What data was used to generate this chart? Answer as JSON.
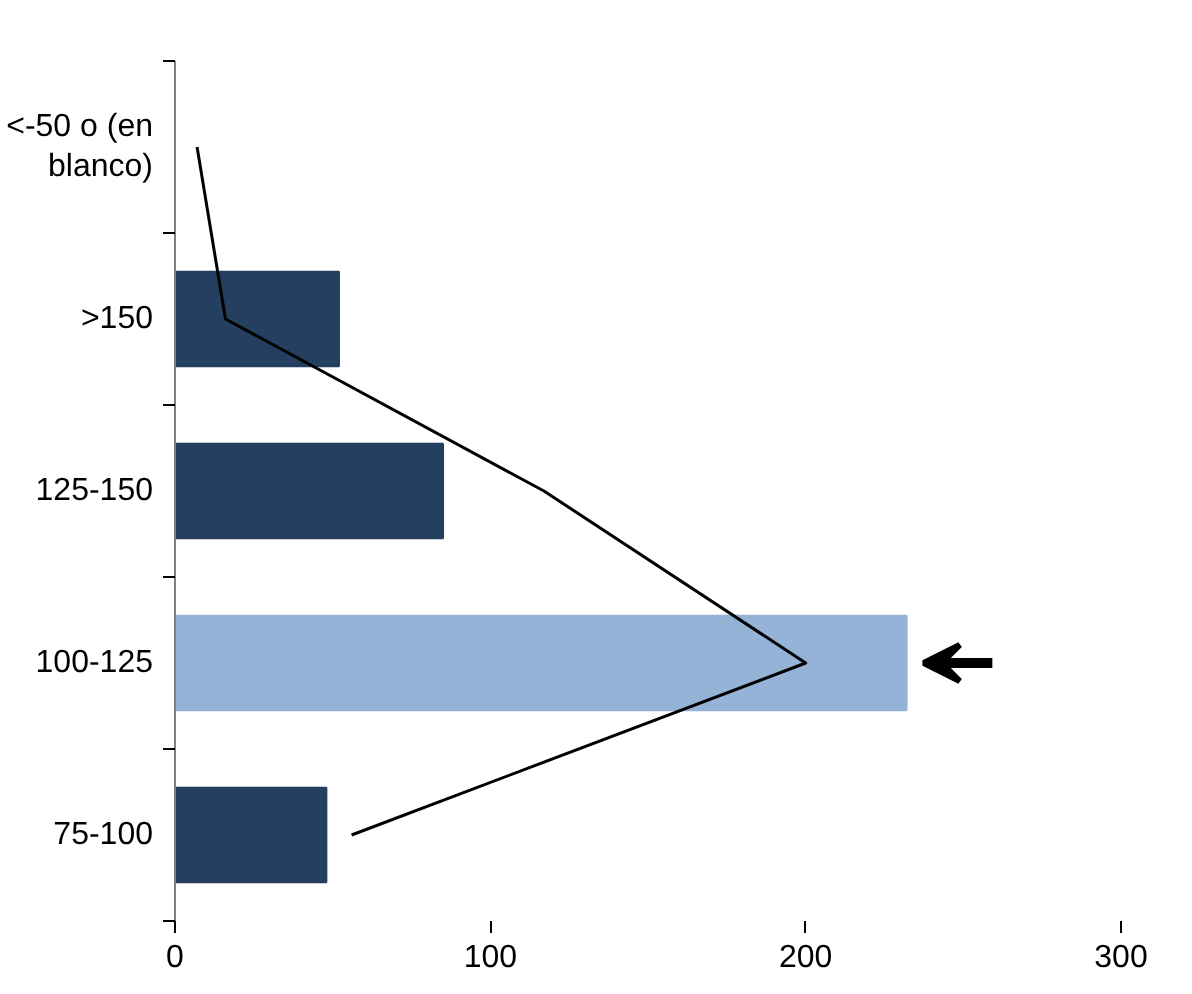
{
  "chart_data": {
    "type": "bar",
    "orientation": "horizontal",
    "categories": [
      "<-50 o (en blanco)",
      ">150",
      "125-150",
      "100-125",
      "75-100"
    ],
    "series": [
      {
        "colors": [
          "#243f60",
          "#243f60",
          "#243f60",
          "#95b3d7",
          "#243f60"
        ],
        "values": [
          0,
          52,
          85,
          232,
          48
        ]
      },
      {
        "type": "line",
        "color": "#000000",
        "values": [
          7,
          16,
          117,
          200,
          56
        ]
      }
    ],
    "xlim": [
      0,
      300
    ],
    "xticks": [
      0,
      100,
      200,
      300
    ],
    "grid": false
  }
}
